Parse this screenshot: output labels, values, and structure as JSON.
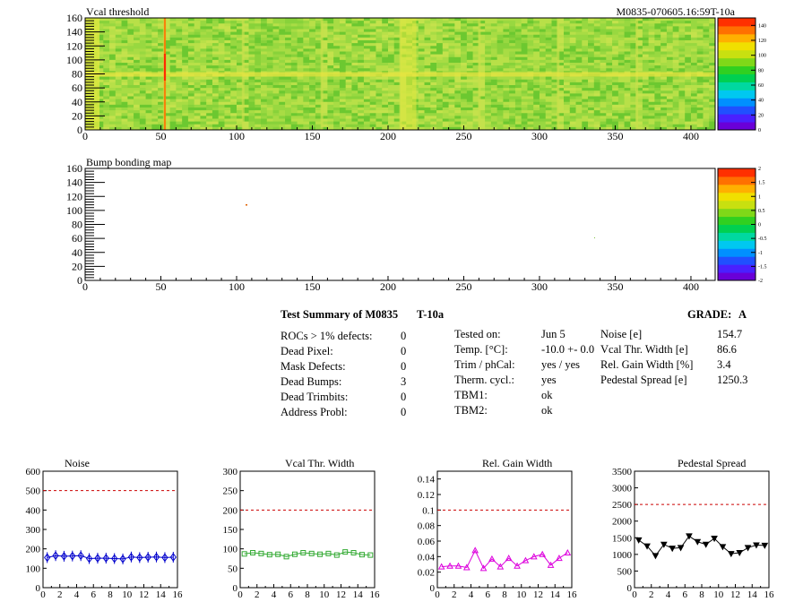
{
  "header": {
    "title": "Vcal threshold",
    "module_id": "M0835-070605.16:59T-10a"
  },
  "maps": [
    {
      "name": "vcal-threshold",
      "title": "Vcal threshold",
      "xticks": [
        "0",
        "50",
        "100",
        "150",
        "200",
        "250",
        "300",
        "350",
        "400"
      ],
      "yticks": [
        "0",
        "20",
        "40",
        "60",
        "80",
        "100",
        "120",
        "140",
        "160"
      ],
      "zticks": [
        "0",
        "20",
        "40",
        "60",
        "80",
        "100",
        "120",
        "140"
      ]
    },
    {
      "name": "bump-bonding",
      "title": "Bump bonding map",
      "xticks": [
        "0",
        "50",
        "100",
        "150",
        "200",
        "250",
        "300",
        "350",
        "400"
      ],
      "yticks": [
        "0",
        "20",
        "40",
        "60",
        "80",
        "100",
        "120",
        "140",
        "160"
      ],
      "zticks": [
        "-2",
        "-1.5",
        "-1",
        "-0.5",
        "0",
        "0.5",
        "1",
        "1.5",
        "2"
      ]
    }
  ],
  "summary": {
    "title": "Test Summary of M0835",
    "temp_code": "T-10a",
    "grade_label": "GRADE:",
    "grade": "A",
    "col1": [
      {
        "label": "ROCs > 1% defects:",
        "value": "0"
      },
      {
        "label": "Dead Pixel:",
        "value": "0"
      },
      {
        "label": "Mask Defects:",
        "value": "0"
      },
      {
        "label": "Dead Bumps:",
        "value": "3"
      },
      {
        "label": "Dead Trimbits:",
        "value": "0"
      },
      {
        "label": "Address Probl:",
        "value": "0"
      }
    ],
    "col2": [
      {
        "label": "Tested on:",
        "value": "Jun 5"
      },
      {
        "label": "Temp. [°C]:",
        "value": "-10.0 +- 0.0"
      },
      {
        "label": "Trim / phCal:",
        "value": "yes / yes"
      },
      {
        "label": "Therm. cycl.:",
        "value": "yes"
      },
      {
        "label": "TBM1:",
        "value": "ok"
      },
      {
        "label": "TBM2:",
        "value": "ok"
      }
    ],
    "col3": [
      {
        "label": "Noise [e]",
        "value": "154.7"
      },
      {
        "label": "Vcal Thr. Width [e]",
        "value": "86.6"
      },
      {
        "label": "Rel. Gain Width [%]",
        "value": "3.4"
      },
      {
        "label": "Pedestal Spread [e]",
        "value": "1250.3"
      }
    ]
  },
  "chart_data": [
    {
      "type": "heatmap",
      "title": "Vcal threshold",
      "xlim": [
        0,
        416
      ],
      "ylim": [
        0,
        160
      ],
      "zlim": [
        0,
        150
      ],
      "description_values": "uniform ~95-105 across module, red column near x=52, yellow at row 80 seam",
      "hot_column_x": 52,
      "zrange_ticks": [
        0,
        20,
        40,
        60,
        80,
        100,
        120,
        140
      ]
    },
    {
      "type": "heatmap",
      "title": "Bump bonding map",
      "xlim": [
        0,
        416
      ],
      "ylim": [
        0,
        160
      ],
      "zlim": [
        -2,
        2
      ],
      "zrange_ticks": [
        -2,
        -1.5,
        -1,
        -0.5,
        0,
        0.5,
        1,
        1.5,
        2
      ]
    },
    {
      "type": "line",
      "title": "Noise",
      "xlim": [
        0,
        16
      ],
      "ylim": [
        0,
        600
      ],
      "xticks": [
        0,
        2,
        4,
        6,
        8,
        10,
        12,
        14,
        16
      ],
      "yticks": [
        0,
        100,
        200,
        300,
        400,
        500,
        600
      ],
      "threshold": 500,
      "color": "#0000cc",
      "marker": "diamond",
      "x": [
        0.5,
        1.5,
        2.5,
        3.5,
        4.5,
        5.5,
        6.5,
        7.5,
        8.5,
        9.5,
        10.5,
        11.5,
        12.5,
        13.5,
        14.5,
        15.5
      ],
      "values": [
        155,
        165,
        162,
        163,
        165,
        150,
        152,
        152,
        150,
        148,
        158,
        155,
        157,
        158,
        155,
        157
      ]
    },
    {
      "type": "line",
      "title": "Vcal Thr. Width",
      "xlim": [
        0,
        16
      ],
      "ylim": [
        0,
        300
      ],
      "xticks": [
        0,
        2,
        4,
        6,
        8,
        10,
        12,
        14,
        16
      ],
      "yticks": [
        0,
        50,
        100,
        150,
        200,
        250,
        300
      ],
      "threshold": 200,
      "color": "#33aa33",
      "marker": "square",
      "x": [
        0.5,
        1.5,
        2.5,
        3.5,
        4.5,
        5.5,
        6.5,
        7.5,
        8.5,
        9.5,
        10.5,
        11.5,
        12.5,
        13.5,
        14.5,
        15.5
      ],
      "values": [
        87,
        90,
        88,
        85,
        86,
        80,
        86,
        90,
        88,
        86,
        88,
        84,
        92,
        90,
        85,
        84
      ]
    },
    {
      "type": "line",
      "title": "Rel. Gain Width",
      "xlim": [
        0,
        16
      ],
      "ylim": [
        0,
        0.15
      ],
      "xticks": [
        0,
        2,
        4,
        6,
        8,
        10,
        12,
        14,
        16
      ],
      "yticks": [
        0,
        0.02,
        0.04,
        0.06,
        0.08,
        0.1,
        0.12,
        0.14
      ],
      "ytick_labels": [
        "0",
        "0.02",
        "0.04",
        "0.06",
        "0.08",
        "0.1",
        "0.12",
        "0.14"
      ],
      "threshold": 0.1,
      "color": "#dd00dd",
      "marker": "triangle",
      "x": [
        0.5,
        1.5,
        2.5,
        3.5,
        4.5,
        5.5,
        6.5,
        7.5,
        8.5,
        9.5,
        10.5,
        11.5,
        12.5,
        13.5,
        14.5,
        15.5
      ],
      "values": [
        0.027,
        0.028,
        0.028,
        0.026,
        0.048,
        0.025,
        0.037,
        0.027,
        0.038,
        0.028,
        0.035,
        0.04,
        0.043,
        0.029,
        0.038,
        0.045
      ]
    },
    {
      "type": "line",
      "title": "Pedestal Spread",
      "xlim": [
        0,
        16
      ],
      "ylim": [
        0,
        3500
      ],
      "xticks": [
        0,
        2,
        4,
        6,
        8,
        10,
        12,
        14,
        16
      ],
      "yticks": [
        0,
        500,
        1000,
        1500,
        2000,
        2500,
        3000,
        3500
      ],
      "threshold": 2500,
      "color": "#000000",
      "marker": "triangle-down",
      "x": [
        0.5,
        1.5,
        2.5,
        3.5,
        4.5,
        5.5,
        6.5,
        7.5,
        8.5,
        9.5,
        10.5,
        11.5,
        12.5,
        13.5,
        14.5,
        15.5
      ],
      "values": [
        1430,
        1250,
        960,
        1300,
        1180,
        1200,
        1550,
        1380,
        1300,
        1480,
        1230,
        1020,
        1050,
        1200,
        1280,
        1270
      ]
    }
  ]
}
